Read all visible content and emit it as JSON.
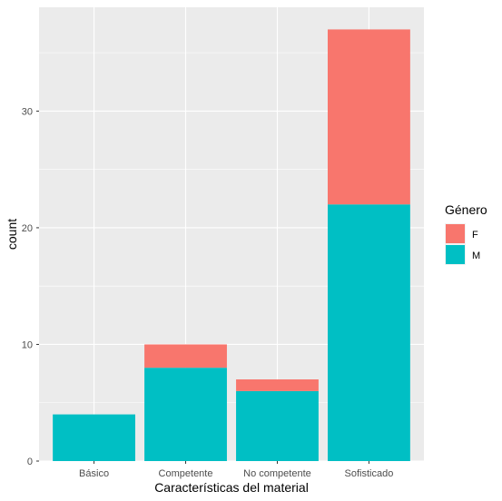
{
  "chart_data": {
    "type": "bar",
    "stacked": true,
    "categories": [
      "Básico",
      "Competente",
      "No competente",
      "Sofisticado"
    ],
    "series": [
      {
        "name": "F",
        "values": [
          0,
          2,
          1,
          15
        ],
        "color": "#F8766D"
      },
      {
        "name": "M",
        "values": [
          4,
          8,
          6,
          22
        ],
        "color": "#00BFC4"
      }
    ],
    "xlabel": "Características del material",
    "ylabel": "count",
    "ylim": [
      0,
      38.9
    ],
    "yticks": [
      0,
      10,
      20,
      30
    ],
    "grid": true,
    "background": "#EBEBEB",
    "legend": {
      "title": "Género",
      "placement": "right",
      "entries": [
        "F",
        "M"
      ]
    }
  }
}
